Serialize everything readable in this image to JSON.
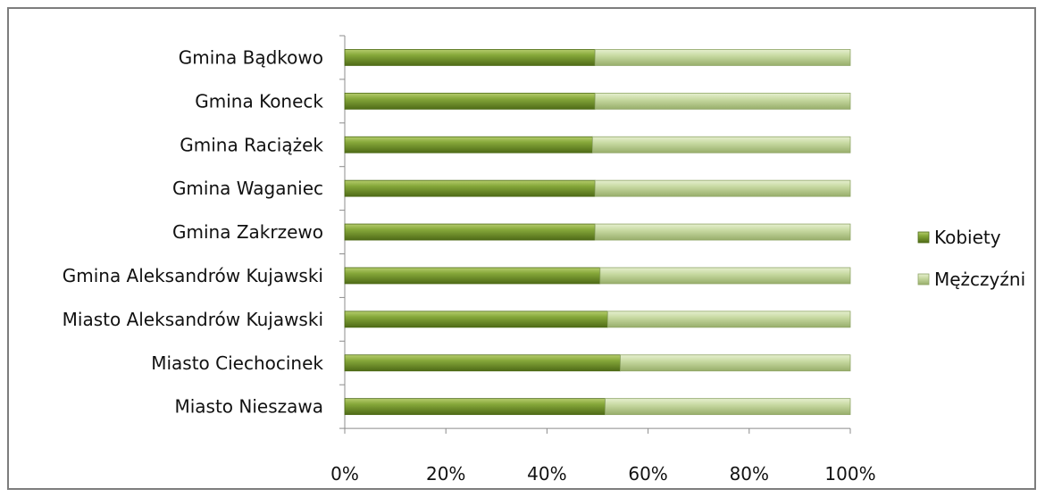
{
  "chart_data": {
    "type": "bar",
    "orientation": "horizontal",
    "stacking": "percent",
    "categories": [
      "Gmina Bądkowo",
      "Gmina Koneck",
      "Gmina Raciążek",
      "Gmina Waganiec",
      "Gmina Zakrzewo",
      "Gmina Aleksandrów Kujawski",
      "Miasto Aleksandrów Kujawski",
      "Miasto Ciechocinek",
      "Miasto Nieszawa"
    ],
    "series": [
      {
        "name": "Kobiety",
        "color": "#7a9a2e",
        "values": [
          49.5,
          49.5,
          49.0,
          49.5,
          49.5,
          50.5,
          52.0,
          54.5,
          51.5
        ]
      },
      {
        "name": "Mężczyźni",
        "color": "#c3d69b",
        "values": [
          50.5,
          50.5,
          51.0,
          50.5,
          50.5,
          49.5,
          48.0,
          45.5,
          48.5
        ]
      }
    ],
    "xlim": [
      0,
      100
    ],
    "x_ticks": [
      "0%",
      "20%",
      "40%",
      "60%",
      "80%",
      "100%"
    ],
    "title": "",
    "xlabel": "",
    "ylabel": "",
    "grid": false,
    "legend_position": "right"
  }
}
